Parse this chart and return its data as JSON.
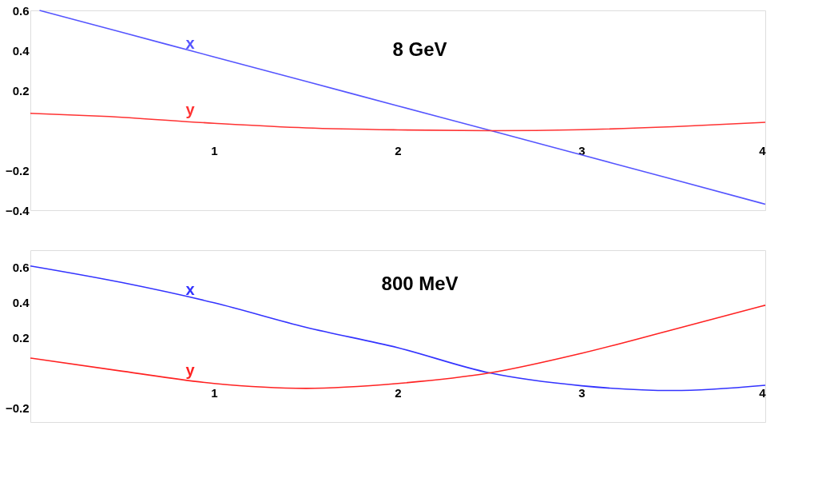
{
  "chart_data": [
    {
      "type": "line",
      "title": "8 GeV",
      "xlim": [
        0,
        4
      ],
      "ylim": [
        -0.4,
        0.6
      ],
      "xticks": [
        1,
        2,
        3,
        4
      ],
      "yticks": [
        -0.4,
        -0.2,
        0.2,
        0.4,
        0.6
      ],
      "grid": false,
      "legend": false,
      "marker": "none",
      "line_style": "solid",
      "series": [
        {
          "name": "x",
          "color": "#5555ff",
          "x": [
            0.05,
            0.5,
            1,
            1.5,
            2,
            2.5,
            3,
            3.5,
            4
          ],
          "values": [
            0.6,
            0.49,
            0.367,
            0.245,
            0.122,
            0.0,
            -0.123,
            -0.246,
            -0.37
          ]
        },
        {
          "name": "y",
          "color": "#ff3333",
          "x": [
            0,
            0.4,
            1,
            1.5,
            2,
            2.5,
            3,
            3.5,
            4
          ],
          "values": [
            0.085,
            0.07,
            0.035,
            0.012,
            0.002,
            -0.002,
            0.003,
            0.018,
            0.04
          ]
        }
      ]
    },
    {
      "type": "line",
      "title": "800 MeV",
      "xlim": [
        0,
        4
      ],
      "ylim": [
        -0.28,
        0.7
      ],
      "xticks": [
        1,
        2,
        3,
        4
      ],
      "yticks": [
        -0.2,
        0.2,
        0.4,
        0.6
      ],
      "grid": false,
      "legend": false,
      "marker": "none",
      "line_style": "solid",
      "series": [
        {
          "name": "x",
          "color": "#3333ff",
          "x": [
            0,
            0.5,
            1,
            1.5,
            2,
            2.5,
            3,
            3.5,
            4
          ],
          "values": [
            0.61,
            0.515,
            0.4,
            0.26,
            0.144,
            0.0,
            -0.073,
            -0.1,
            -0.07
          ]
        },
        {
          "name": "y",
          "color": "#ff2222",
          "x": [
            0,
            0.5,
            1,
            1.5,
            2,
            2.5,
            3,
            3.5,
            4
          ],
          "values": [
            0.085,
            0.01,
            -0.06,
            -0.088,
            -0.06,
            0.0,
            0.112,
            0.248,
            0.386
          ]
        }
      ]
    }
  ]
}
